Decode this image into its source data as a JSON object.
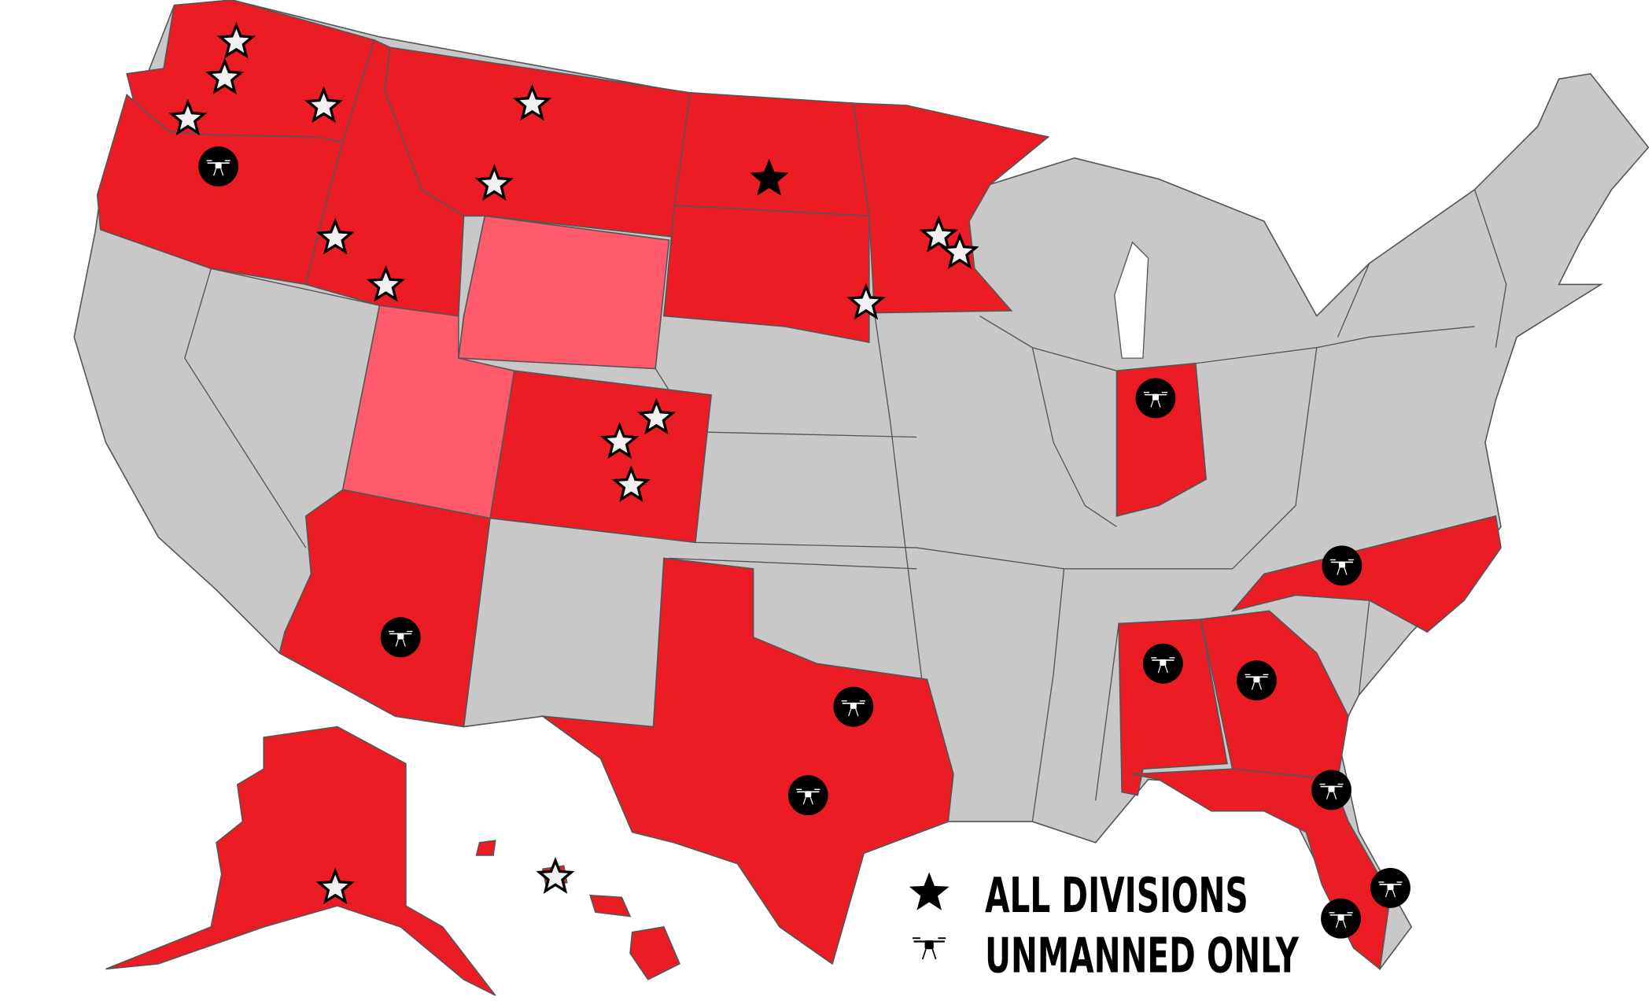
{
  "colors": {
    "all_divisions_state": "#ec1c24",
    "partial_state": "#ff5b6b",
    "other_state": "#c8c8c8",
    "border": "#555555",
    "star_fill": "#f0f0f0",
    "marker_black": "#000000"
  },
  "legend": {
    "all_divisions": {
      "icon": "star-icon",
      "label": "ALL DIVISIONS"
    },
    "unmanned_only": {
      "icon": "drone-icon",
      "label": "UNMANNED ONLY"
    }
  },
  "states": [
    {
      "name": "Washington",
      "status": "highlighted",
      "markers": [
        "star",
        "star",
        "star",
        "star"
      ]
    },
    {
      "name": "Oregon",
      "status": "highlighted",
      "markers": [
        "drone"
      ]
    },
    {
      "name": "Idaho",
      "status": "highlighted",
      "markers": [
        "star",
        "star"
      ]
    },
    {
      "name": "Montana",
      "status": "highlighted",
      "markers": [
        "star",
        "star"
      ]
    },
    {
      "name": "North Dakota",
      "status": "highlighted",
      "markers": [
        "star-black"
      ]
    },
    {
      "name": "South Dakota",
      "status": "highlighted",
      "markers": [
        "star"
      ]
    },
    {
      "name": "Minnesota",
      "status": "highlighted",
      "markers": [
        "star",
        "star"
      ]
    },
    {
      "name": "Wyoming",
      "status": "light",
      "markers": []
    },
    {
      "name": "Utah",
      "status": "light",
      "markers": []
    },
    {
      "name": "Colorado",
      "status": "highlighted",
      "markers": [
        "star",
        "star",
        "star"
      ]
    },
    {
      "name": "Arizona",
      "status": "highlighted",
      "markers": [
        "drone"
      ]
    },
    {
      "name": "Texas",
      "status": "highlighted",
      "markers": [
        "drone",
        "drone"
      ]
    },
    {
      "name": "Indiana",
      "status": "highlighted",
      "markers": [
        "drone"
      ]
    },
    {
      "name": "North Carolina",
      "status": "highlighted",
      "markers": [
        "drone"
      ]
    },
    {
      "name": "Alabama",
      "status": "highlighted",
      "markers": [
        "drone"
      ]
    },
    {
      "name": "Georgia",
      "status": "highlighted",
      "markers": [
        "drone"
      ]
    },
    {
      "name": "Florida",
      "status": "highlighted",
      "markers": [
        "drone",
        "drone",
        "drone"
      ]
    },
    {
      "name": "Alaska",
      "status": "highlighted",
      "markers": [
        "star"
      ]
    },
    {
      "name": "Hawaii",
      "status": "highlighted",
      "markers": [
        "star"
      ]
    }
  ]
}
